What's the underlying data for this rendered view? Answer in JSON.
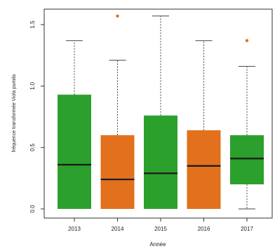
{
  "chart_data": {
    "type": "boxplot",
    "title": "",
    "xlabel": "Année",
    "ylabel": "fréquence transformée Viola pumila",
    "ylim": [
      0,
      1.6
    ],
    "yticks": [
      0.0,
      0.5,
      1.0,
      1.5
    ],
    "yticklabels": [
      "0.0",
      "0.5",
      "1.0",
      "1.5"
    ],
    "categories": [
      "2013",
      "2014",
      "2015",
      "2016",
      "2017"
    ],
    "grid": false,
    "legend": "none",
    "boxes": [
      {
        "category": "2013",
        "whisker_low": 0.0,
        "q1": 0.0,
        "median": 0.36,
        "q3": 0.93,
        "whisker_high": 1.37,
        "outliers": [],
        "color": "#2ca02c"
      },
      {
        "category": "2014",
        "whisker_low": 0.0,
        "q1": 0.0,
        "median": 0.24,
        "q3": 0.6,
        "whisker_high": 1.21,
        "outliers": [
          1.57
        ],
        "color": "#e2701d"
      },
      {
        "category": "2015",
        "whisker_low": 0.0,
        "q1": 0.0,
        "median": 0.29,
        "q3": 0.76,
        "whisker_high": 1.57,
        "outliers": [],
        "color": "#2ca02c"
      },
      {
        "category": "2016",
        "whisker_low": 0.0,
        "q1": 0.0,
        "median": 0.35,
        "q3": 0.64,
        "whisker_high": 1.37,
        "outliers": [],
        "color": "#e2701d"
      },
      {
        "category": "2017",
        "whisker_low": 0.0,
        "q1": 0.2,
        "median": 0.41,
        "q3": 0.6,
        "whisker_high": 1.16,
        "outliers": [
          1.37
        ],
        "color": "#2ca02c"
      }
    ],
    "outlier_color": "#e2701d"
  }
}
